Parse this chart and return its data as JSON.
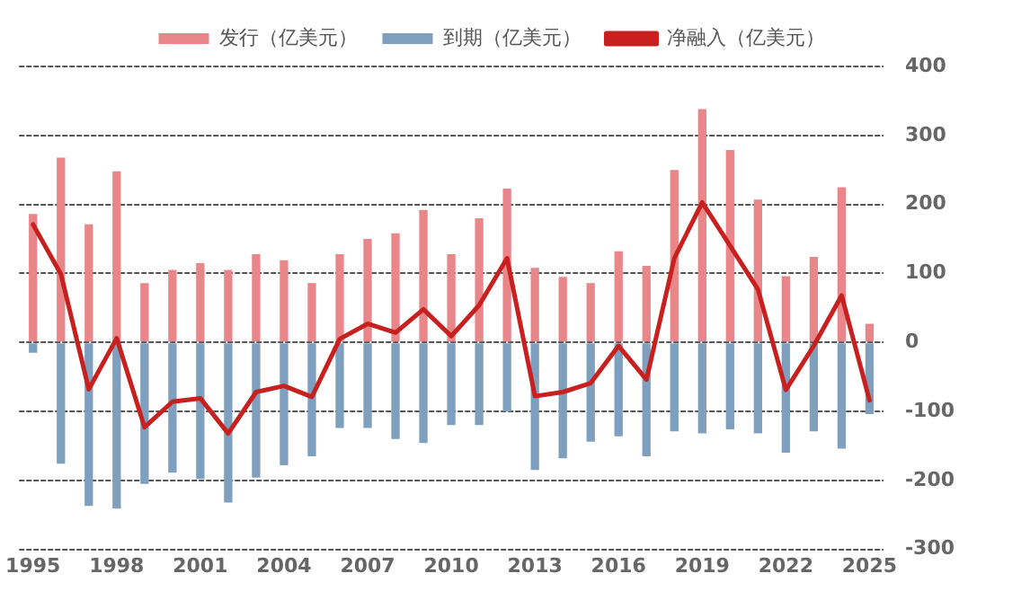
{
  "chart_data": {
    "type": "bar",
    "stacked": true,
    "categories": [
      "1995",
      null,
      null,
      "1998",
      null,
      null,
      "2001",
      null,
      null,
      "2004",
      null,
      null,
      "2007",
      null,
      null,
      "2010",
      null,
      null,
      "2013",
      null,
      null,
      "2016",
      null,
      null,
      "2019",
      null,
      null,
      "2022",
      null,
      null,
      "2025"
    ],
    "series": [
      {
        "name": "发行（亿美元）",
        "color": "#e8868a",
        "values": [
          186,
          268,
          171,
          248,
          86,
          105,
          115,
          105,
          128,
          119,
          86,
          128,
          150,
          158,
          192,
          128,
          180,
          223,
          108,
          95,
          86,
          132,
          111,
          250,
          338,
          279,
          207,
          96,
          124,
          225,
          27
        ]
      },
      {
        "name": "到期（亿美元）",
        "color": "#7f9fbf",
        "values": [
          -15,
          -176,
          -237,
          -241,
          -205,
          -189,
          -198,
          -232,
          -196,
          -178,
          -165,
          -124,
          -124,
          -140,
          -146,
          -120,
          -120,
          -100,
          -185,
          -168,
          -144,
          -136,
          -165,
          -129,
          -132,
          -126,
          -132,
          -160,
          -129,
          -154,
          -104
        ]
      },
      {
        "name": "净融入（亿美元）",
        "type": "line",
        "color": "#c8201e",
        "values": [
          171,
          99,
          -68,
          6,
          -123,
          -86,
          -81,
          -132,
          -72,
          -63,
          -79,
          5,
          27,
          14,
          48,
          9,
          54,
          122,
          -78,
          -72,
          -59,
          -5,
          -54,
          122,
          203,
          140,
          77,
          -69,
          -5,
          68,
          -84
        ]
      }
    ],
    "ylim": [
      -300,
      400
    ],
    "yticks": [
      -300,
      -200,
      -100,
      0,
      100,
      200,
      300,
      400
    ],
    "grid": "y",
    "legend": "top",
    "marker": "none"
  }
}
